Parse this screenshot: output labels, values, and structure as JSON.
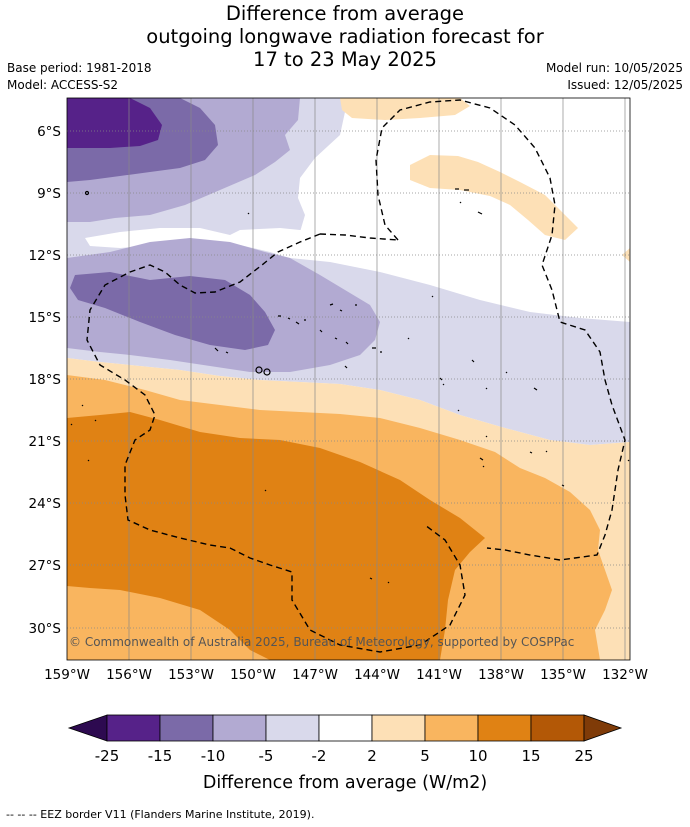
{
  "header": {
    "title_line1": "Difference from average",
    "title_line2": "outgoing longwave radiation forecast for",
    "title_line3": "17 to 23 May 2025",
    "base_period": "Base period: 1981-2018",
    "model": "Model: ACCESS-S2",
    "model_run": "Model run: 10/05/2025",
    "issued": "Issued: 12/05/2025"
  },
  "map": {
    "lat_labels": [
      "6°S",
      "9°S",
      "12°S",
      "15°S",
      "18°S",
      "21°S",
      "24°S",
      "27°S",
      "30°S"
    ],
    "lon_labels": [
      "159°W",
      "156°W",
      "153°W",
      "150°W",
      "147°W",
      "144°W",
      "141°W",
      "138°W",
      "135°W",
      "132°W"
    ],
    "copyright": "© Commonwealth of Australia 2025, Bureau of Meteorology, supported by COSPPac"
  },
  "colorbar": {
    "ticks": [
      "-25",
      "-15",
      "-10",
      "-5",
      "-2",
      "2",
      "5",
      "10",
      "15",
      "25"
    ],
    "colors": {
      "neg_extreme": "#2d0a50",
      "neg_25_15": "#562289",
      "neg_15_10": "#7b6aa8",
      "neg_10_5": "#b2aad2",
      "neg_5_2": "#d9d9eb",
      "neutral": "#ffffff",
      "pos_2_5": "#fde0b6",
      "pos_5_10": "#f9b55f",
      "pos_10_15": "#e08214",
      "pos_15_25": "#b35806",
      "pos_extreme": "#7f3b08"
    },
    "title": "Difference from average (W/m2)"
  },
  "footer": {
    "legend_text": "--  --  -- EEZ border V11 (Flanders Marine Institute, 2019)."
  }
}
